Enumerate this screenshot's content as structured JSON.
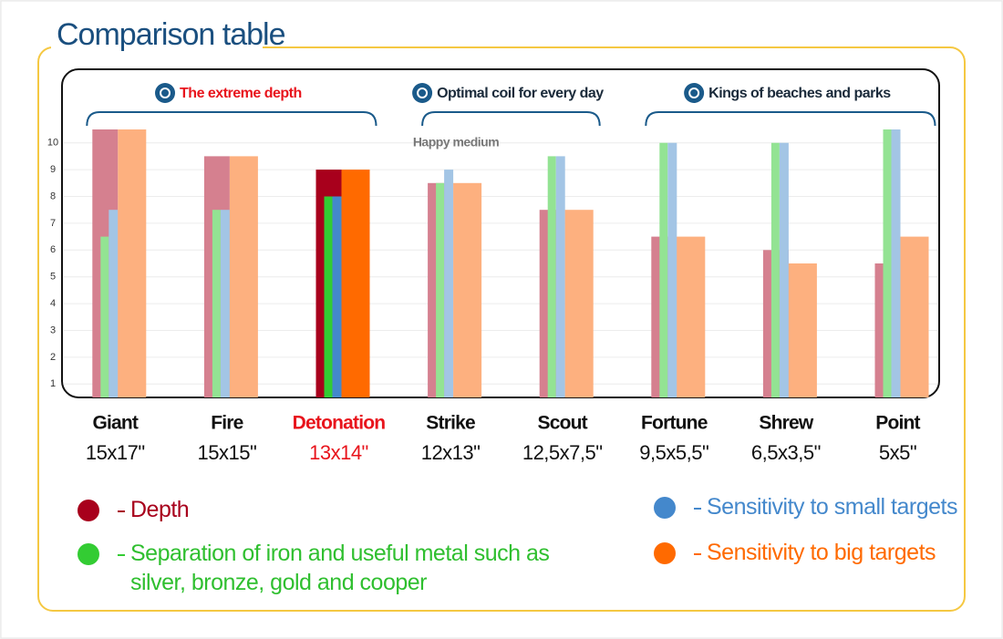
{
  "title": "Comparison table",
  "chart_data": {
    "type": "bar",
    "categories": [
      "Giant",
      "Fire",
      "Detonation",
      "Strike",
      "Scout",
      "Fortune",
      "Shrew",
      "Point"
    ],
    "sizes": [
      "15x17\"",
      "15x15\"",
      "13x14\"",
      "12x13\"",
      "12,5x7,5\"",
      "9,5x5,5\"",
      "6,5x3,5\"",
      "5x5\""
    ],
    "highlighted": "Detonation",
    "groups": [
      {
        "label": "The extreme depth",
        "first": "Giant",
        "last": "Detonation",
        "color": "#e8141c"
      },
      {
        "label": "Optimal coil for every day",
        "first": "Strike",
        "last": "Scout",
        "color": "#1a2a3a"
      },
      {
        "label": "Kings of beaches and parks",
        "first": "Fortune",
        "last": "Point",
        "color": "#1a2a3a"
      }
    ],
    "annotation": "Happy medium",
    "series": [
      {
        "name": "Depth",
        "color": "#d5808f",
        "highlight_color": "#a8001c",
        "values": [
          10.5,
          9.5,
          9,
          8.5,
          7.5,
          6.5,
          6,
          5.5
        ]
      },
      {
        "name": "Separation of iron and useful metal such as silver, bronze, gold and cooper",
        "color": "#93e393",
        "highlight_color": "#33cc33",
        "values": [
          6.5,
          7.5,
          8,
          8.5,
          9.5,
          10,
          10,
          10.5
        ]
      },
      {
        "name": "Sensitivity to small targets",
        "color": "#a3c5e5",
        "highlight_color": "#4488cc",
        "values": [
          7.5,
          7.5,
          8,
          9,
          9.5,
          10,
          10,
          10.5
        ]
      },
      {
        "name": "Sensitivity to big targets",
        "color": "#fdb07f",
        "highlight_color": "#ff6a00",
        "values": [
          10.5,
          9.5,
          9,
          8.5,
          7.5,
          6.5,
          5.5,
          6.5
        ]
      }
    ],
    "ylim": [
      0.5,
      10.5
    ],
    "yticks": [
      1,
      2,
      3,
      4,
      5,
      6,
      7,
      8,
      9,
      10
    ],
    "grid": true
  }
}
